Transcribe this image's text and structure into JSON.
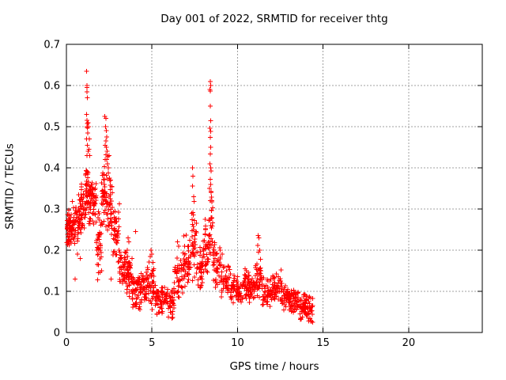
{
  "chart_data": {
    "type": "scatter",
    "title": "Day 001 of 2022, SRMTID for receiver thtg",
    "xlabel": "GPS time / hours",
    "ylabel": "SRMTID / TECUs",
    "xlim": [
      0,
      24.3
    ],
    "ylim": [
      0,
      0.7
    ],
    "xticks": {
      "values": [
        0,
        5,
        10,
        15,
        20
      ],
      "labels": [
        "0",
        "5",
        "10",
        "15",
        "20"
      ]
    },
    "yticks": {
      "values": [
        0,
        0.1,
        0.2,
        0.3,
        0.4,
        0.5,
        0.6,
        0.7
      ],
      "labels": [
        "0",
        "0.1",
        "0.2",
        "0.3",
        "0.4",
        "0.5",
        "0.6",
        "0.7"
      ]
    },
    "grid": true,
    "legend": false,
    "marker": "plus",
    "marker_color": "#ff0000",
    "data_extent": {
      "x_min": 0.02,
      "x_max": 14.45,
      "y_min": 0.02,
      "y_max": 0.635
    },
    "description": "Dense red '+' scatter: starts ~0.2-0.3 TECUs at 0h, spike to 0.635 near 1.2h, secondary peak ~0.52 near 2.3h, decays to 0.05-0.15 band by 4h, minimum ~0.03-0.12 near 5-6h, rises to sharp peak 0.61 near 8.4h, then low 0.05-0.15 band with small bump ~0.24 near 11.2h, tapering to 0.02-0.09 where data ends at ~14.4h. No data after 14.5h.",
    "peak_points": [
      [
        1.18,
        0.635
      ],
      [
        1.2,
        0.6
      ],
      [
        1.21,
        0.595
      ],
      [
        1.19,
        0.585
      ],
      [
        1.22,
        0.57
      ],
      [
        1.17,
        0.53
      ],
      [
        1.2,
        0.515
      ],
      [
        1.23,
        0.508
      ],
      [
        1.19,
        0.5
      ],
      [
        1.22,
        0.497
      ],
      [
        1.25,
        0.485
      ],
      [
        1.18,
        0.47
      ],
      [
        1.23,
        0.455
      ],
      [
        1.26,
        0.44
      ],
      [
        1.21,
        0.43
      ],
      [
        1.28,
        0.51
      ],
      [
        1.3,
        0.5
      ],
      [
        1.33,
        0.47
      ],
      [
        1.31,
        0.445
      ],
      [
        1.36,
        0.43
      ],
      [
        2.25,
        0.525
      ],
      [
        2.3,
        0.52
      ],
      [
        2.28,
        0.5
      ],
      [
        2.33,
        0.49
      ],
      [
        2.36,
        0.475
      ],
      [
        2.3,
        0.465
      ],
      [
        2.27,
        0.455
      ],
      [
        2.34,
        0.45
      ],
      [
        2.39,
        0.44
      ],
      [
        2.31,
        0.432
      ],
      [
        2.43,
        0.428
      ],
      [
        2.36,
        0.42
      ],
      [
        2.41,
        0.41
      ],
      [
        2.46,
        0.4
      ],
      [
        2.5,
        0.43
      ],
      [
        7.36,
        0.4
      ],
      [
        7.4,
        0.38
      ],
      [
        7.38,
        0.356
      ],
      [
        7.43,
        0.33
      ],
      [
        7.46,
        0.318
      ],
      [
        8.4,
        0.61
      ],
      [
        8.42,
        0.6
      ],
      [
        8.39,
        0.59
      ],
      [
        8.41,
        0.587
      ],
      [
        8.4,
        0.55
      ],
      [
        8.43,
        0.514
      ],
      [
        8.39,
        0.496
      ],
      [
        8.42,
        0.488
      ],
      [
        8.4,
        0.474
      ],
      [
        8.44,
        0.45
      ],
      [
        8.41,
        0.434
      ],
      [
        8.38,
        0.41
      ],
      [
        8.43,
        0.4
      ],
      [
        8.45,
        0.392
      ],
      [
        8.4,
        0.372
      ],
      [
        8.44,
        0.36
      ],
      [
        8.37,
        0.35
      ],
      [
        8.46,
        0.34
      ],
      [
        11.2,
        0.236
      ],
      [
        11.25,
        0.23
      ],
      [
        11.18,
        0.212
      ],
      [
        11.3,
        0.2
      ],
      [
        11.22,
        0.195
      ],
      [
        3.6,
        0.23
      ],
      [
        3.66,
        0.22
      ],
      [
        3.55,
        0.2
      ],
      [
        4.05,
        0.245
      ],
      [
        4.95,
        0.2
      ],
      [
        5.0,
        0.19
      ],
      [
        4.9,
        0.185
      ],
      [
        5.06,
        0.17
      ],
      [
        6.5,
        0.22
      ],
      [
        6.56,
        0.21
      ],
      [
        0.65,
        0.19
      ],
      [
        0.82,
        0.18
      ],
      [
        1.8,
        0.165
      ],
      [
        1.86,
        0.145
      ],
      [
        1.83,
        0.128
      ],
      [
        0.5,
        0.13
      ],
      [
        9.1,
        0.19
      ],
      [
        10.45,
        0.155
      ],
      [
        12.55,
        0.152
      ],
      [
        2.6,
        0.13
      ],
      [
        2.05,
        0.15
      ]
    ],
    "cloud_bands_format": "[x_start_hours, x_end_hours, y_min_TECUs, y_max_TECUs, point_count]",
    "cloud_bands": [
      [
        0.02,
        0.3,
        0.19,
        0.3,
        55
      ],
      [
        0.3,
        0.7,
        0.2,
        0.32,
        50
      ],
      [
        0.7,
        1.1,
        0.22,
        0.37,
        55
      ],
      [
        1.1,
        1.35,
        0.26,
        0.42,
        40
      ],
      [
        1.35,
        1.75,
        0.25,
        0.38,
        55
      ],
      [
        1.75,
        2.05,
        0.14,
        0.3,
        35
      ],
      [
        2.05,
        2.35,
        0.24,
        0.43,
        40
      ],
      [
        2.35,
        2.7,
        0.22,
        0.4,
        38
      ],
      [
        2.7,
        3.1,
        0.16,
        0.32,
        42
      ],
      [
        3.1,
        3.5,
        0.1,
        0.22,
        45
      ],
      [
        3.5,
        3.85,
        0.07,
        0.2,
        42
      ],
      [
        3.85,
        4.3,
        0.05,
        0.15,
        48
      ],
      [
        4.3,
        4.7,
        0.06,
        0.16,
        40
      ],
      [
        4.7,
        5.2,
        0.05,
        0.18,
        45
      ],
      [
        5.2,
        5.8,
        0.04,
        0.12,
        50
      ],
      [
        5.8,
        6.3,
        0.03,
        0.12,
        45
      ],
      [
        6.3,
        6.8,
        0.07,
        0.19,
        40
      ],
      [
        6.8,
        7.3,
        0.1,
        0.24,
        45
      ],
      [
        7.3,
        7.6,
        0.12,
        0.3,
        35
      ],
      [
        7.6,
        8.0,
        0.09,
        0.21,
        35
      ],
      [
        8.0,
        8.3,
        0.11,
        0.28,
        32
      ],
      [
        8.3,
        8.55,
        0.14,
        0.4,
        30
      ],
      [
        8.55,
        9.0,
        0.1,
        0.24,
        40
      ],
      [
        9.0,
        9.6,
        0.08,
        0.18,
        46
      ],
      [
        9.6,
        10.3,
        0.07,
        0.14,
        55
      ],
      [
        10.3,
        10.7,
        0.08,
        0.16,
        40
      ],
      [
        10.7,
        11.0,
        0.07,
        0.14,
        34
      ],
      [
        11.0,
        11.45,
        0.08,
        0.19,
        45
      ],
      [
        11.45,
        12.1,
        0.06,
        0.14,
        55
      ],
      [
        12.1,
        12.6,
        0.07,
        0.15,
        45
      ],
      [
        12.6,
        13.1,
        0.05,
        0.12,
        45
      ],
      [
        13.1,
        13.6,
        0.04,
        0.11,
        46
      ],
      [
        13.6,
        14.1,
        0.03,
        0.1,
        50
      ],
      [
        14.1,
        14.45,
        0.02,
        0.09,
        28
      ]
    ],
    "seed": 20220101
  },
  "colors": {
    "marker": "#ff0000",
    "grid": "#a0a0a0",
    "axis": "#000000",
    "background": "#ffffff"
  }
}
